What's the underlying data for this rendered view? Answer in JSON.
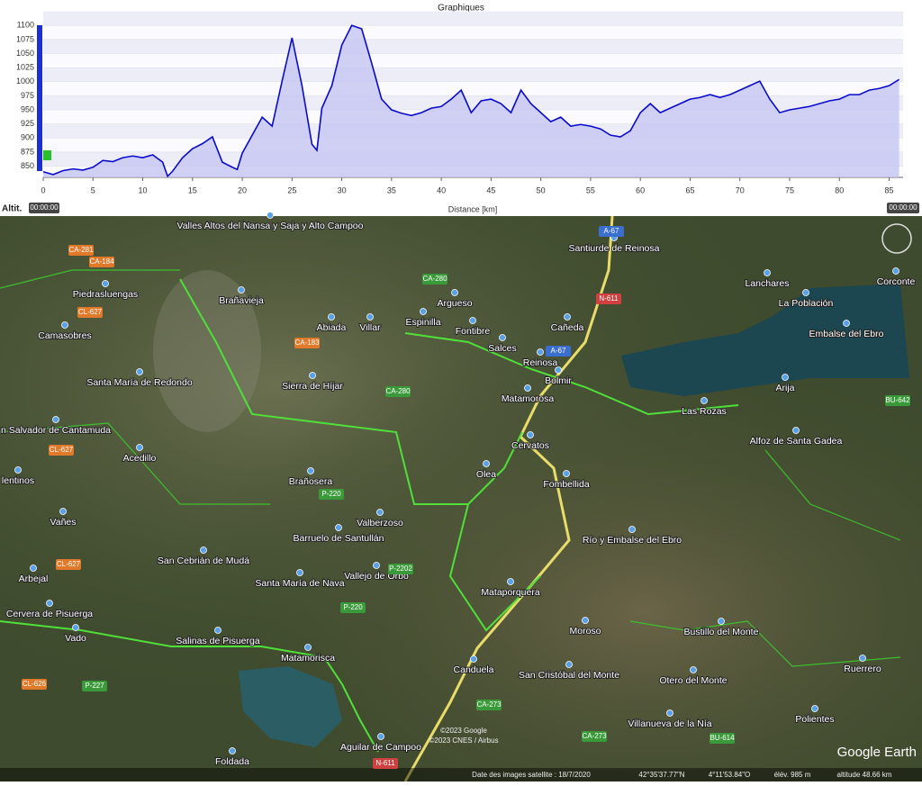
{
  "window": {
    "title": "Graphiques"
  },
  "chart_data": {
    "type": "area",
    "x_label": "Distance [km]",
    "y_label": "Altit.",
    "start_time": "00:00:00",
    "end_time": "00:00:00",
    "x": [
      0,
      1,
      2,
      3,
      4,
      5,
      6,
      7,
      8,
      9,
      10,
      11,
      12,
      12.5,
      13,
      14,
      15,
      16,
      17,
      18,
      19,
      19.5,
      20,
      21,
      22,
      23,
      24,
      25,
      26,
      27,
      27.5,
      28,
      29,
      30,
      31,
      32,
      33,
      34,
      35,
      36,
      37,
      38,
      39,
      40,
      41,
      42,
      43,
      44,
      45,
      46,
      47,
      48,
      49,
      50,
      51,
      52,
      53,
      54,
      55,
      56,
      57,
      58,
      59,
      60,
      61,
      62,
      63,
      64,
      65,
      66,
      67,
      68,
      69,
      70,
      71,
      72,
      73,
      74,
      75,
      76,
      77,
      78,
      79,
      80,
      81,
      82,
      83,
      84,
      85,
      86
    ],
    "values": [
      840,
      835,
      842,
      845,
      843,
      848,
      860,
      858,
      865,
      868,
      865,
      870,
      857,
      832,
      841,
      865,
      881,
      890,
      902,
      857,
      848,
      844,
      873,
      905,
      937,
      921,
      1001,
      1078,
      993,
      889,
      878,
      953,
      993,
      1065,
      1100,
      1094,
      1033,
      969,
      950,
      944,
      940,
      945,
      953,
      956,
      969,
      985,
      945,
      966,
      969,
      961,
      945,
      985,
      961,
      945,
      929,
      937,
      921,
      924,
      921,
      916,
      905,
      902,
      913,
      945,
      961,
      945,
      953,
      961,
      969,
      972,
      977,
      972,
      977,
      985,
      993,
      1001,
      969,
      945,
      950,
      953,
      956,
      961,
      966,
      969,
      977,
      977,
      985,
      988,
      993,
      1004
    ],
    "color": "#0a0acc",
    "xlim": [
      0,
      86.4
    ],
    "ylim": [
      830,
      1102
    ],
    "xticks": [
      0,
      5,
      10,
      15,
      20,
      25,
      30,
      35,
      40,
      45,
      50,
      55,
      60,
      65,
      70,
      75,
      80,
      85
    ],
    "yticks": [
      850,
      875,
      900,
      925,
      950,
      975,
      1000,
      1025,
      1050,
      1075,
      1100
    ],
    "grid": true
  },
  "map": {
    "places": [
      "Valles Altos del Nansa y Saja y Alto Campoo",
      "Santiurde de Reinosa",
      "Piedrasluengas",
      "Brañavieja",
      "Argueso",
      "Lanchares",
      "Corconte",
      "La Población",
      "Camasobres",
      "Abiada",
      "Villar",
      "Espinilla",
      "Fontibre",
      "Salces",
      "Cañeda",
      "Embalse del Ebro",
      "Reinosa",
      "Bolmir",
      "Santa María de Redondo",
      "Sierra de Híjar",
      "Matamorosa",
      "Arija",
      "Las Rozas",
      "n Salvador de Cantamuda",
      "Cervatos",
      "Alfoz de Santa Gadea",
      "Acedillo",
      "Olea",
      "Fombellida",
      "Brañosera",
      "lentinos",
      "Valberzoso",
      "Vañes",
      "Barruelo de Santullán",
      "Río y Embalse del Ebro",
      "San Cebrián de Mudá",
      "Arbejal",
      "Vallejo de Orbó",
      "Santa María de Nava",
      "Mataporquera",
      "Cervera de Pisuerga",
      "Vado",
      "Moroso",
      "Bustillo del Monte",
      "Salinas de Pisuerga",
      "Matamorisca",
      "Canduela",
      "San Cristóbal del Monte",
      "Otero del Monte",
      "Ruerrero",
      "Villanueva de la Nía",
      "Polientes",
      "Aguilar de Campoo",
      "Foldada"
    ],
    "roads": [
      "CA-281",
      "CA-184",
      "CL-627",
      "CA-183",
      "CA-280",
      "CA-280",
      "A-67",
      "N-611",
      "A-67",
      "CL-627",
      "P-220",
      "CL-627",
      "P-220",
      "P-2202",
      "CL-626",
      "P-227",
      "CA-273",
      "CA-273",
      "BU-614",
      "BU-642",
      "N-611"
    ],
    "attribution": [
      "©2023 Google",
      "©2023 CNES / Airbus"
    ],
    "logo": "Google Earth",
    "status": [
      "Date des images satellite : 18/7/2020",
      "42°35'37.77\"N",
      "4°11'53.84\"O",
      "élév.  985 m",
      "altitude  48.66 km"
    ]
  }
}
